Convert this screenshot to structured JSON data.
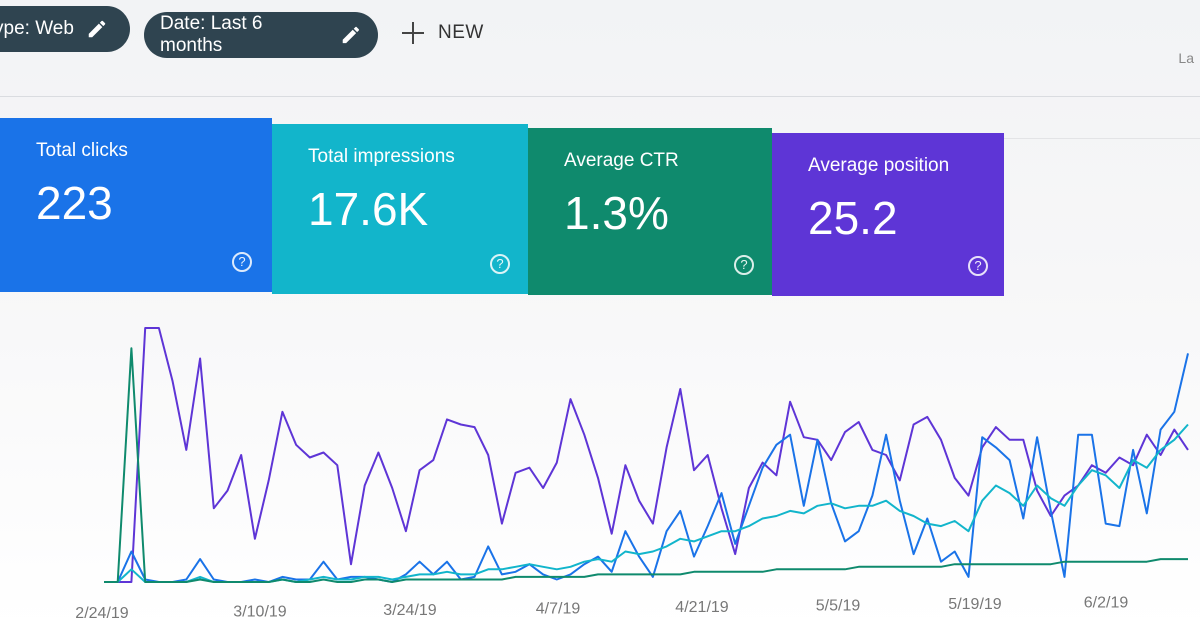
{
  "filters": {
    "type_chip": "ype: Web",
    "date_chip": "Date: Last 6 months",
    "new_label": "NEW",
    "last_updated": "La"
  },
  "metrics": [
    {
      "label": "Total clicks",
      "value": "223",
      "color": "#1a73e8"
    },
    {
      "label": "Total impressions",
      "value": "17.6K",
      "color": "#12b5cb"
    },
    {
      "label": "Average CTR",
      "value": "1.3%",
      "color": "#0f8a6d"
    },
    {
      "label": "Average position",
      "value": "25.2",
      "color": "#5e35d6"
    }
  ],
  "help_glyph": "?",
  "chart_data": {
    "type": "line",
    "x_ticks": [
      "2/24/19",
      "3/10/19",
      "3/24/19",
      "4/7/19",
      "4/21/19",
      "5/5/19",
      "5/19/19",
      "6/2/19"
    ],
    "legend": "none",
    "grid": false,
    "series": [
      {
        "color": "#5e35d6",
        "values": [
          0,
          0,
          0,
          1,
          1,
          0.79,
          0.52,
          0.88,
          0.29,
          0.36,
          0.5,
          0.17,
          0.4,
          0.67,
          0.54,
          0.49,
          0.51,
          0.46,
          0.07,
          0.38,
          0.51,
          0.37,
          0.2,
          0.44,
          0.48,
          0.64,
          0.62,
          0.61,
          0.5,
          0.23,
          0.43,
          0.45,
          0.37,
          0.47,
          0.72,
          0.58,
          0.41,
          0.19,
          0.46,
          0.32,
          0.23,
          0.53,
          0.76,
          0.44,
          0.5,
          0.29,
          0.11,
          0.37,
          0.47,
          0.42,
          0.71,
          0.57,
          0.56,
          0.48,
          0.59,
          0.63,
          0.52,
          0.5,
          0.4,
          0.62,
          0.65,
          0.56,
          0.41,
          0.34,
          0.53,
          0.61,
          0.56,
          0.56,
          0.36,
          0.26,
          0.34,
          0.38,
          0.46,
          0.43,
          0.49,
          0.46,
          0.58,
          0.5,
          0.6,
          0.52
        ]
      },
      {
        "color": "#1a73e8",
        "values": [
          0,
          0,
          0.12,
          0.01,
          0,
          0,
          0.01,
          0.09,
          0.01,
          0,
          0,
          0.01,
          0,
          0.02,
          0.01,
          0.01,
          0.08,
          0.01,
          0.02,
          0.02,
          0.01,
          0,
          0.03,
          0.08,
          0.03,
          0.08,
          0.01,
          0.02,
          0.14,
          0.03,
          0.04,
          0.07,
          0.03,
          0.01,
          0.03,
          0.07,
          0.1,
          0.04,
          0.2,
          0.1,
          0.02,
          0.2,
          0.28,
          0.1,
          0.22,
          0.35,
          0.15,
          0.3,
          0.45,
          0.54,
          0.58,
          0.3,
          0.56,
          0.31,
          0.16,
          0.2,
          0.34,
          0.58,
          0.32,
          0.11,
          0.25,
          0.08,
          0.12,
          0.02,
          0.57,
          0.53,
          0.48,
          0.25,
          0.57,
          0.28,
          0.02,
          0.58,
          0.58,
          0.23,
          0.22,
          0.52,
          0.27,
          0.6,
          0.67,
          0.9
        ]
      },
      {
        "color": "#12b5cb",
        "values": [
          0,
          0,
          0.05,
          0,
          0,
          0,
          0,
          0.02,
          0,
          0,
          0,
          0,
          0,
          0.01,
          0,
          0.01,
          0.02,
          0.01,
          0.01,
          0.02,
          0.02,
          0.01,
          0.02,
          0.03,
          0.03,
          0.04,
          0.03,
          0.03,
          0.05,
          0.05,
          0.06,
          0.07,
          0.06,
          0.05,
          0.06,
          0.08,
          0.09,
          0.08,
          0.12,
          0.11,
          0.12,
          0.14,
          0.17,
          0.16,
          0.18,
          0.2,
          0.2,
          0.22,
          0.25,
          0.26,
          0.28,
          0.27,
          0.3,
          0.31,
          0.29,
          0.3,
          0.3,
          0.32,
          0.28,
          0.26,
          0.23,
          0.22,
          0.24,
          0.2,
          0.32,
          0.38,
          0.35,
          0.3,
          0.38,
          0.33,
          0.3,
          0.38,
          0.44,
          0.42,
          0.37,
          0.48,
          0.45,
          0.52,
          0.56,
          0.62
        ]
      },
      {
        "color": "#0f8a6d",
        "values": [
          0,
          0,
          0.92,
          0,
          0,
          0,
          0,
          0.01,
          0,
          0,
          0,
          0,
          0,
          0.01,
          0,
          0,
          0.01,
          0,
          0,
          0.01,
          0.01,
          0,
          0.01,
          0.01,
          0.01,
          0.01,
          0.01,
          0.01,
          0.01,
          0.01,
          0.02,
          0.02,
          0.02,
          0.02,
          0.02,
          0.02,
          0.03,
          0.03,
          0.03,
          0.03,
          0.03,
          0.03,
          0.03,
          0.04,
          0.04,
          0.04,
          0.04,
          0.04,
          0.04,
          0.05,
          0.05,
          0.05,
          0.05,
          0.05,
          0.05,
          0.06,
          0.06,
          0.06,
          0.06,
          0.06,
          0.06,
          0.06,
          0.07,
          0.07,
          0.07,
          0.07,
          0.07,
          0.07,
          0.07,
          0.07,
          0.08,
          0.08,
          0.08,
          0.08,
          0.08,
          0.08,
          0.08,
          0.09,
          0.09,
          0.09
        ]
      }
    ]
  }
}
